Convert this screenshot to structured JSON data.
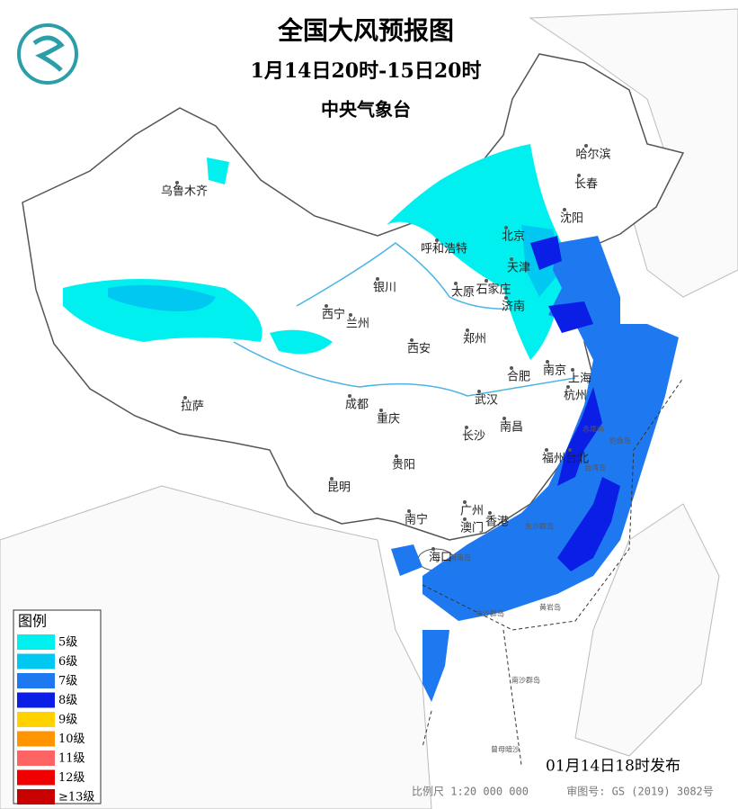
{
  "header": {
    "title": "全国大风预报图",
    "subtitle": "1月14日20时-15日20时",
    "publisher": "中央气象台"
  },
  "legend": {
    "title": "图例",
    "items": [
      {
        "label": "5级",
        "color": "#00f0f0"
      },
      {
        "label": "6级",
        "color": "#00c8f0"
      },
      {
        "label": "7级",
        "color": "#1e78f0"
      },
      {
        "label": "8级",
        "color": "#0a1ee6"
      },
      {
        "label": "9级",
        "color": "#ffd200"
      },
      {
        "label": "10级",
        "color": "#ff9600"
      },
      {
        "label": "11级",
        "color": "#ff6464"
      },
      {
        "label": "12级",
        "color": "#f00000"
      },
      {
        "label": "≥13级",
        "color": "#c80000"
      }
    ]
  },
  "cities": [
    "乌鲁木齐",
    "哈尔滨",
    "长春",
    "沈阳",
    "呼和浩特",
    "北京",
    "天津",
    "石家庄",
    "太原",
    "济南",
    "银川",
    "西宁",
    "兰州",
    "西安",
    "郑州",
    "合肥",
    "南京",
    "上海",
    "杭州",
    "武汉",
    "拉萨",
    "成都",
    "重庆",
    "长沙",
    "南昌",
    "福州",
    "台北",
    "贵阳",
    "昆明",
    "南宁",
    "广州",
    "澳门",
    "香港",
    "海口"
  ],
  "places": [
    "台湾岛",
    "海南岛",
    "东沙群岛",
    "钓鱼岛",
    "赤尾屿",
    "中沙群岛",
    "黄岩岛",
    "南沙群岛",
    "曾母暗沙"
  ],
  "footer": {
    "issued": "01月14日18时发布",
    "scale": "比例尺 1:20 000 000",
    "approval": "审图号: GS (2019) 3082号"
  }
}
